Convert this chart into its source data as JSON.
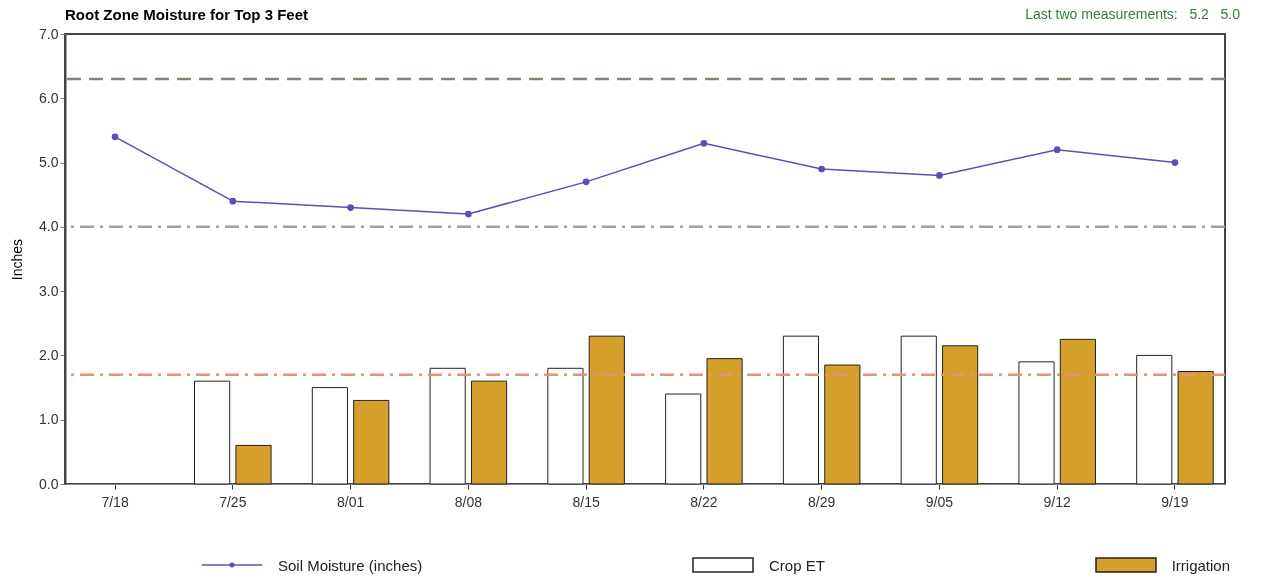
{
  "chart_data": {
    "type": "bar",
    "title": "Root Zone Moisture for Top 3 Feet",
    "ylabel": "Inches",
    "annotations": [
      "Last two measurements:   5.2   5.0"
    ],
    "categories": [
      "7/18",
      "7/25",
      "8/01",
      "8/08",
      "8/15",
      "8/22",
      "8/29",
      "9/05",
      "9/12",
      "9/19"
    ],
    "series": [
      {
        "name": "Soil Moisture (inches)",
        "type": "line",
        "color": "#5b4fb5",
        "marker": "circle",
        "values": [
          5.4,
          4.4,
          4.3,
          4.2,
          4.7,
          5.3,
          4.9,
          4.8,
          5.2,
          5.0
        ]
      },
      {
        "name": "Crop ET",
        "type": "bar",
        "color": "#ffffff",
        "values": [
          0,
          1.6,
          1.5,
          1.8,
          1.8,
          1.4,
          2.3,
          2.3,
          1.9,
          2.0
        ]
      },
      {
        "name": "Irrigation",
        "type": "bar",
        "color": "#d4a02a",
        "values": [
          0,
          0.6,
          1.3,
          1.6,
          2.3,
          1.95,
          1.85,
          2.15,
          2.25,
          1.75
        ]
      }
    ],
    "ylim": [
      0,
      7
    ],
    "yticks": [
      {
        "value": 0,
        "label": "0.0"
      },
      {
        "value": 1,
        "label": "1.0"
      },
      {
        "value": 2,
        "label": "2.0"
      },
      {
        "value": 3,
        "label": "3.0"
      },
      {
        "value": 4,
        "label": "4.0"
      },
      {
        "value": 5,
        "label": "5.0"
      },
      {
        "value": 6,
        "label": "6.0"
      },
      {
        "value": 7,
        "label": "7.0"
      }
    ],
    "ref_lines": [
      {
        "axis": "y",
        "value": 6.3,
        "color": "#7a8a70",
        "line_style": "dashed"
      },
      {
        "axis": "y",
        "value": 4.0,
        "color": "#a0a0a0",
        "line_style": "dashdot"
      },
      {
        "axis": "y",
        "value": 1.7,
        "color": "#e8907a",
        "line_style": "dashdot"
      }
    ],
    "grid": false,
    "legend": "bottom"
  }
}
